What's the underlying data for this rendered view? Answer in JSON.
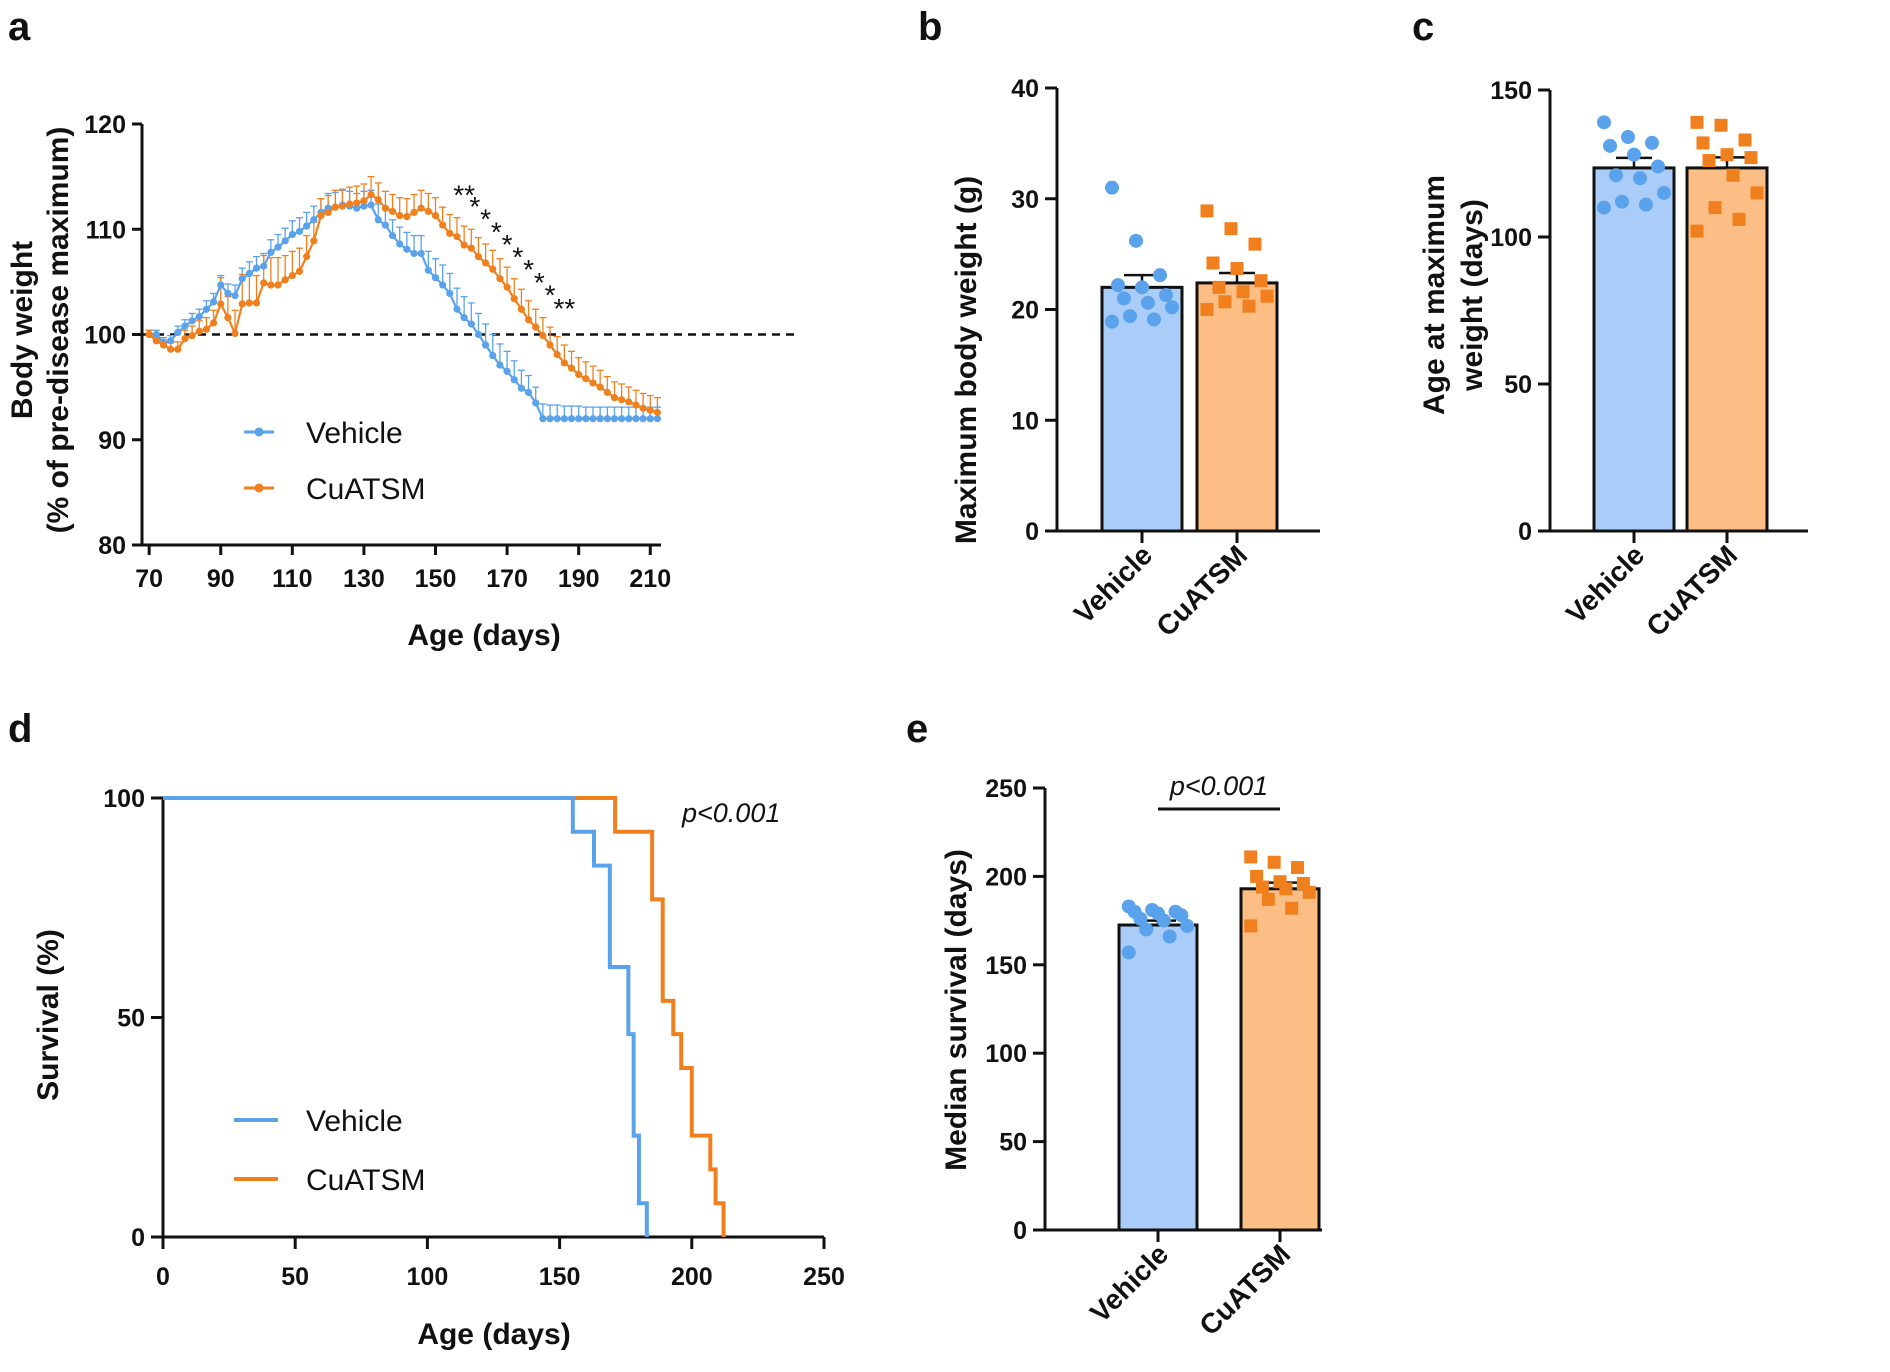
{
  "colors": {
    "vehicle": "#5aa2ec",
    "cuatsm": "#f0801e",
    "vehicle_fill": "#aaccf8",
    "cuatsm_fill": "#fcbe84",
    "axis": "#111111"
  },
  "chart_data": [
    {
      "panel": "a",
      "type": "line",
      "xlabel": "Age (days)",
      "ylabel_lines": [
        "Body weight",
        "(% of pre-disease maximum)"
      ],
      "xlim": [
        68,
        213
      ],
      "ylim": [
        80,
        120
      ],
      "xticks": [
        70,
        90,
        110,
        130,
        150,
        170,
        190,
        210
      ],
      "yticks": [
        80,
        90,
        100,
        110,
        120
      ],
      "reference_line": 100,
      "legend": [
        "Vehicle",
        "CuATSM"
      ],
      "legend_position": "bottom-left",
      "significance_marks": [
        {
          "x": 158,
          "y": 113.5,
          "text": "**"
        },
        {
          "x": 161,
          "y": 112.4,
          "text": "*"
        },
        {
          "x": 164,
          "y": 111.2,
          "text": "*"
        },
        {
          "x": 167,
          "y": 110.0,
          "text": "*"
        },
        {
          "x": 170,
          "y": 108.8,
          "text": "*"
        },
        {
          "x": 173,
          "y": 107.6,
          "text": "*"
        },
        {
          "x": 176,
          "y": 106.4,
          "text": "*"
        },
        {
          "x": 179,
          "y": 105.2,
          "text": "*"
        },
        {
          "x": 182,
          "y": 104.0,
          "text": "*"
        },
        {
          "x": 186,
          "y": 102.7,
          "text": "**"
        }
      ],
      "series": [
        {
          "name": "Vehicle",
          "x": [
            70,
            72,
            74,
            76,
            78,
            80,
            82,
            84,
            86,
            88,
            90,
            92,
            94,
            96,
            98,
            100,
            102,
            104,
            106,
            108,
            110,
            112,
            114,
            116,
            118,
            120,
            122,
            124,
            126,
            128,
            130,
            132,
            134,
            136,
            138,
            140,
            142,
            144,
            146,
            148,
            150,
            152,
            154,
            156,
            158,
            160,
            162,
            164,
            166,
            168,
            170,
            172,
            174,
            176,
            178,
            180,
            182,
            184,
            186,
            188,
            190,
            192,
            194,
            196,
            198,
            200,
            202,
            204,
            206,
            208,
            210,
            212
          ],
          "y": [
            100,
            100,
            99.2,
            99.4,
            100.2,
            100.8,
            101.3,
            101.7,
            102.4,
            103.1,
            104.7,
            103.9,
            103.7,
            105.3,
            105.8,
            106.3,
            106.5,
            107.8,
            108.3,
            108.9,
            109.5,
            109.8,
            110.3,
            110.9,
            111.6,
            112.0,
            112.1,
            112.3,
            112.2,
            112.0,
            112.2,
            112.3,
            110.9,
            110.4,
            109.4,
            108.6,
            108.1,
            107.7,
            107.7,
            106.1,
            105.4,
            104.7,
            103.9,
            102.4,
            101.6,
            101.0,
            100.0,
            99.0,
            98.0,
            97.1,
            96.5,
            95.7,
            94.9,
            94.5,
            93.5,
            92.0,
            92.0,
            92.0,
            92.0,
            92.0,
            92.0,
            92.0,
            92.0,
            92.0,
            92.0,
            92.0,
            92.0,
            92.0,
            92.0,
            92.0,
            92.0,
            92.0
          ],
          "error": [
            0.4,
            0.4,
            0.5,
            0.5,
            0.6,
            0.6,
            0.7,
            0.7,
            0.8,
            0.8,
            0.9,
            0.9,
            1.0,
            1.0,
            1.1,
            1.1,
            1.2,
            1.2,
            1.2,
            1.2,
            1.3,
            1.3,
            1.3,
            1.3,
            1.3,
            1.4,
            1.4,
            1.4,
            1.4,
            1.4,
            1.4,
            1.4,
            1.5,
            1.5,
            1.5,
            1.6,
            1.6,
            1.7,
            1.7,
            1.8,
            1.8,
            1.9,
            1.9,
            2.0,
            2.0,
            2.0,
            2.0,
            2.0,
            2.0,
            2.0,
            1.9,
            1.8,
            1.7,
            1.6,
            1.5,
            1.4,
            1.3,
            1.3,
            1.2,
            1.2,
            1.2,
            1.1,
            1.1,
            1.1,
            1.1,
            1.1,
            1.1,
            1.1,
            1.1,
            1.1,
            1.1,
            1.1
          ]
        },
        {
          "name": "CuATSM",
          "x": [
            70,
            72,
            74,
            76,
            78,
            80,
            82,
            84,
            86,
            88,
            90,
            92,
            94,
            96,
            98,
            100,
            102,
            104,
            106,
            108,
            110,
            112,
            114,
            116,
            118,
            120,
            122,
            124,
            126,
            128,
            130,
            132,
            134,
            136,
            138,
            140,
            142,
            144,
            146,
            148,
            150,
            152,
            154,
            156,
            158,
            160,
            162,
            164,
            166,
            168,
            170,
            172,
            174,
            176,
            178,
            180,
            182,
            184,
            186,
            188,
            190,
            192,
            194,
            196,
            198,
            200,
            202,
            204,
            206,
            208,
            210,
            212
          ],
          "y": [
            100,
            99.4,
            99.0,
            98.6,
            98.6,
            99.6,
            99.9,
            100.3,
            100.5,
            101.1,
            102.9,
            101.6,
            100.1,
            102.9,
            103.0,
            103.0,
            104.9,
            104.7,
            104.7,
            105.2,
            105.6,
            106.0,
            107.4,
            108.9,
            111.3,
            111.6,
            112.1,
            112.2,
            112.4,
            112.5,
            112.7,
            113.3,
            112.8,
            112.0,
            111.7,
            111.3,
            111.2,
            111.6,
            112.0,
            111.7,
            111.3,
            110.4,
            109.6,
            109.3,
            108.5,
            108.2,
            107.4,
            106.8,
            106.2,
            105.3,
            104.5,
            103.4,
            102.4,
            101.4,
            100.7,
            99.9,
            99.0,
            98.1,
            97.3,
            96.8,
            96.2,
            95.8,
            95.4,
            95.0,
            94.5,
            94.0,
            93.8,
            93.6,
            93.3,
            93.0,
            92.8,
            92.6
          ],
          "error": [
            0.4,
            0.4,
            0.5,
            0.6,
            0.7,
            0.8,
            0.9,
            1.0,
            1.1,
            1.2,
            2.5,
            2.0,
            2.2,
            2.8,
            2.8,
            2.6,
            2.6,
            2.6,
            2.6,
            2.3,
            2.3,
            2.2,
            2.0,
            1.8,
            1.6,
            1.6,
            1.6,
            1.6,
            1.6,
            1.6,
            1.6,
            1.7,
            1.6,
            1.6,
            1.6,
            1.7,
            1.7,
            1.7,
            1.7,
            1.7,
            1.7,
            1.7,
            1.8,
            1.8,
            1.8,
            1.8,
            1.8,
            1.8,
            1.8,
            1.9,
            1.9,
            1.9,
            1.9,
            1.8,
            1.7,
            1.7,
            1.7,
            1.7,
            1.7,
            1.6,
            1.6,
            1.6,
            1.6,
            1.6,
            1.5,
            1.5,
            1.5,
            1.4,
            1.4,
            1.4,
            1.4,
            1.4
          ]
        }
      ]
    },
    {
      "panel": "b",
      "type": "bar",
      "ylabel": "Maximum body weight (g)",
      "ylim": [
        0,
        40
      ],
      "yticks": [
        0,
        10,
        20,
        30,
        40
      ],
      "categories": [
        "Vehicle",
        "CuATSM"
      ],
      "values": [
        22.0,
        22.4
      ],
      "errors": [
        1.1,
        0.9
      ],
      "points": [
        [
          31.0,
          26.2,
          23.1,
          22.2,
          22.0,
          21.3,
          21.0,
          20.6,
          20.2,
          19.4,
          19.1,
          18.9
        ],
        [
          28.9,
          27.3,
          25.9,
          24.2,
          23.7,
          22.6,
          22.0,
          21.6,
          21.2,
          20.7,
          20.3,
          20.0
        ]
      ]
    },
    {
      "panel": "c",
      "type": "bar",
      "ylabel_lines": [
        "Age at maximum",
        "weight (days)"
      ],
      "ylim": [
        0,
        150
      ],
      "yticks": [
        0,
        50,
        100,
        150
      ],
      "categories": [
        "Vehicle",
        "CuATSM"
      ],
      "values": [
        123.5,
        123.5
      ],
      "errors": [
        3.4,
        3.6
      ],
      "points": [
        [
          139,
          134,
          132,
          131,
          128,
          124,
          121,
          120,
          115,
          112,
          111,
          110
        ],
        [
          139,
          138,
          133,
          132,
          128,
          127,
          126,
          121,
          115,
          110,
          106,
          102
        ]
      ]
    },
    {
      "panel": "d",
      "type": "line",
      "subtype": "survival",
      "xlabel": "Age (days)",
      "ylabel": "Survival (%)",
      "xlim": [
        0,
        250
      ],
      "ylim": [
        0,
        100
      ],
      "xticks": [
        0,
        50,
        100,
        150,
        200,
        250
      ],
      "yticks": [
        0,
        50,
        100
      ],
      "annotation": "p<0.001",
      "legend": [
        "Vehicle",
        "CuATSM"
      ],
      "legend_position": "bottom-left",
      "series": [
        {
          "name": "Vehicle",
          "x": [
            0,
            155,
            155,
            163,
            163,
            169,
            169,
            176,
            176,
            178,
            178,
            180,
            180,
            183,
            183
          ],
          "y": [
            100,
            100,
            92.3,
            92.3,
            84.6,
            84.6,
            61.5,
            61.5,
            46.2,
            46.2,
            23.1,
            23.1,
            7.7,
            7.7,
            0
          ]
        },
        {
          "name": "CuATSM",
          "x": [
            155,
            171,
            171,
            185,
            185,
            189,
            189,
            193,
            193,
            196,
            196,
            200,
            200,
            207,
            207,
            209,
            209,
            212,
            212
          ],
          "y": [
            100,
            100,
            92.3,
            92.3,
            76.9,
            76.9,
            53.8,
            53.8,
            46.2,
            46.2,
            38.5,
            38.5,
            23.1,
            23.1,
            15.4,
            15.4,
            7.7,
            7.7,
            0
          ]
        }
      ]
    },
    {
      "panel": "e",
      "type": "bar",
      "ylabel": "Median survival (days)",
      "ylim": [
        0,
        250
      ],
      "yticks": [
        0,
        50,
        100,
        150,
        200,
        250
      ],
      "categories": [
        "Vehicle",
        "CuATSM"
      ],
      "values": [
        172.5,
        193
      ],
      "errors": [
        2.5,
        3.5
      ],
      "annotation": "p<0.001",
      "points": [
        [
          183,
          181,
          180,
          180,
          179,
          178,
          176,
          175,
          172,
          170,
          166,
          157
        ],
        [
          211,
          208,
          205,
          200,
          197,
          196,
          194,
          193,
          191,
          187,
          182,
          172
        ]
      ]
    }
  ],
  "panel_letters": [
    "a",
    "b",
    "c",
    "d",
    "e"
  ]
}
